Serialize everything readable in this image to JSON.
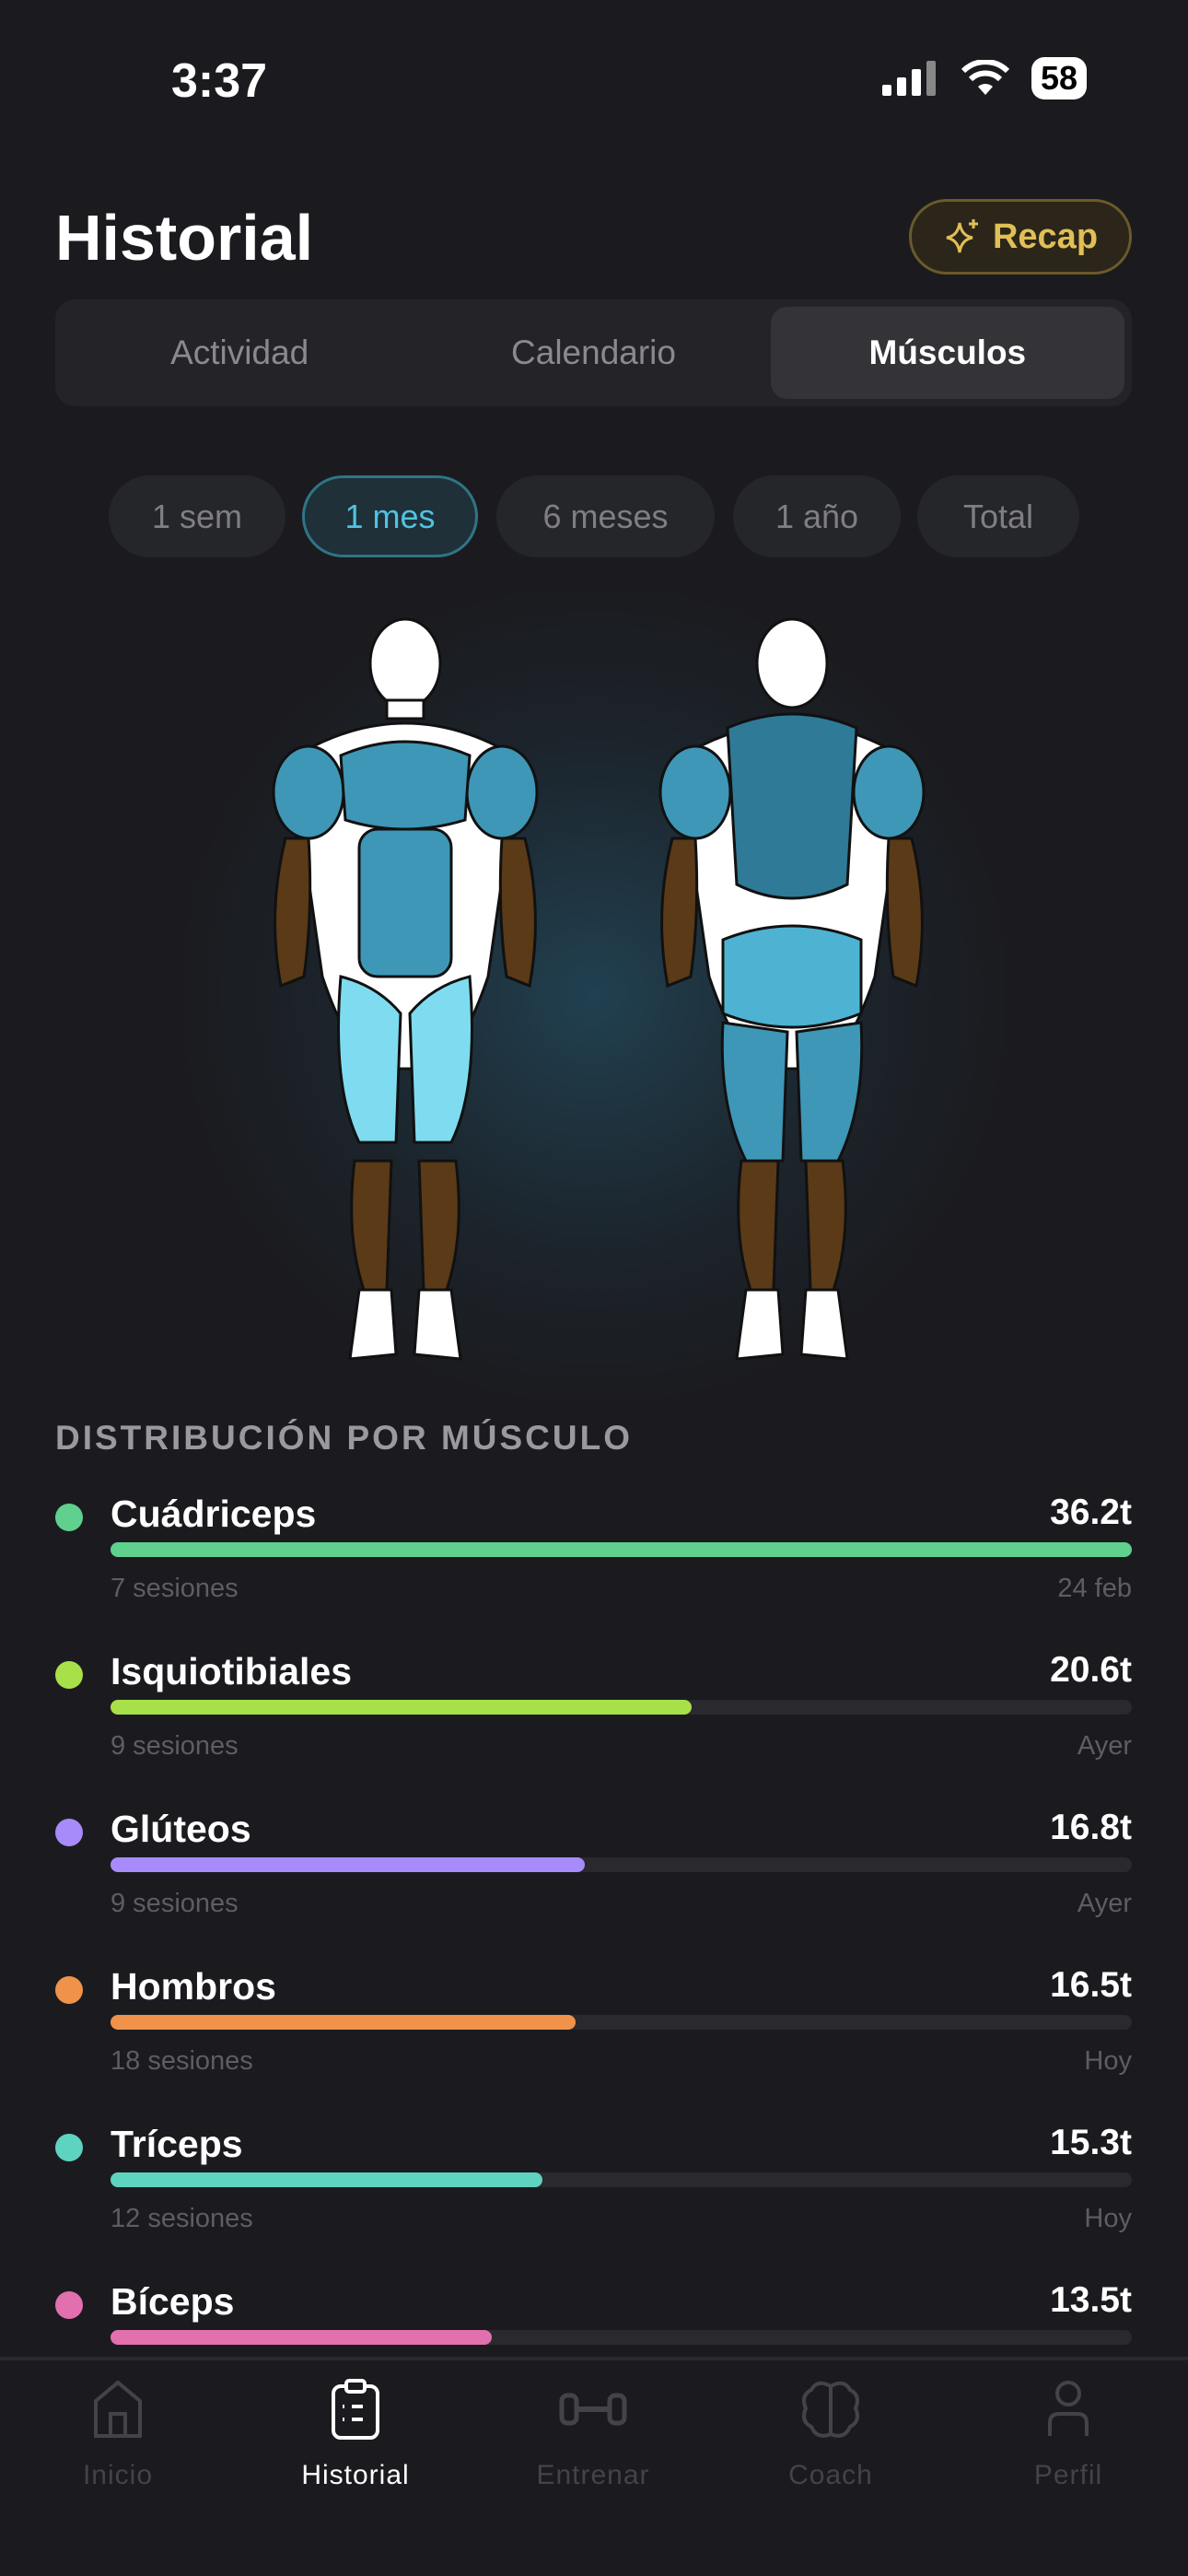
{
  "status": {
    "time": "3:37",
    "battery": "58"
  },
  "header": {
    "title": "Historial",
    "recap_label": "Recap"
  },
  "segments": [
    {
      "label": "Actividad",
      "active": false
    },
    {
      "label": "Calendario",
      "active": false
    },
    {
      "label": "Músculos",
      "active": true
    }
  ],
  "periods": [
    {
      "label": "1 sem",
      "active": false
    },
    {
      "label": "1 mes",
      "active": true
    },
    {
      "label": "6 meses",
      "active": false
    },
    {
      "label": "1 año",
      "active": false
    },
    {
      "label": "Total",
      "active": false
    }
  ],
  "distribution": {
    "heading": "DISTRIBUCIÓN POR MÚSCULO",
    "max": 36.2,
    "items": [
      {
        "name": "Cuádriceps",
        "value": 36.2,
        "value_label": "36.2t",
        "sessions": "7 sesiones",
        "last": "24 feb",
        "color": "#5fd08e"
      },
      {
        "name": "Isquiotibiales",
        "value": 20.6,
        "value_label": "20.6t",
        "sessions": "9 sesiones",
        "last": "Ayer",
        "color": "#a8e04a"
      },
      {
        "name": "Glúteos",
        "value": 16.8,
        "value_label": "16.8t",
        "sessions": "9 sesiones",
        "last": "Ayer",
        "color": "#a78bfa"
      },
      {
        "name": "Hombros",
        "value": 16.5,
        "value_label": "16.5t",
        "sessions": "18 sesiones",
        "last": "Hoy",
        "color": "#f0924a"
      },
      {
        "name": "Tríceps",
        "value": 15.3,
        "value_label": "15.3t",
        "sessions": "12 sesiones",
        "last": "Hoy",
        "color": "#5ed3c0"
      },
      {
        "name": "Bíceps",
        "value": 13.5,
        "value_label": "13.5t",
        "sessions": "",
        "last": "",
        "color": "#e26fae"
      }
    ]
  },
  "tabbar": [
    {
      "label": "Inicio",
      "icon": "home-icon"
    },
    {
      "label": "Historial",
      "icon": "clipboard-icon",
      "active": true
    },
    {
      "label": "Entrenar",
      "icon": "dumbbell-icon"
    },
    {
      "label": "Coach",
      "icon": "brain-icon"
    },
    {
      "label": "Perfil",
      "icon": "person-icon"
    }
  ]
}
